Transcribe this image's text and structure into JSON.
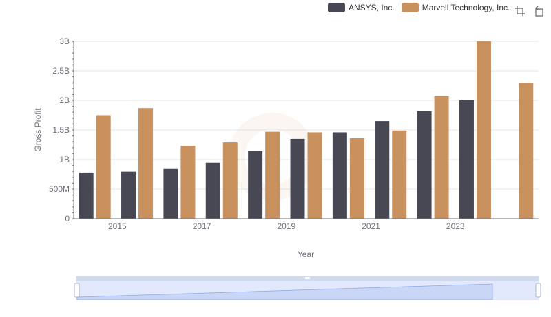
{
  "legend": [
    {
      "name": "ANSYS, Inc.",
      "color": "#484854"
    },
    {
      "name": "Marvell Technology, Inc.",
      "color": "#c9915e"
    }
  ],
  "toolbox": {
    "zoom_icon": "zoom-crosshair-icon",
    "restore_icon": "restore-icon"
  },
  "chart_data": {
    "type": "bar",
    "categories": [
      "2014",
      "2015",
      "2016",
      "2017",
      "2018",
      "2019",
      "2020",
      "2021",
      "2022",
      "2023",
      "2024"
    ],
    "xtick_labels": [
      "2015",
      "2017",
      "2019",
      "2021",
      "2023"
    ],
    "series": [
      {
        "name": "ANSYS, Inc.",
        "color": "#484854",
        "values": [
          780000000,
          795000000,
          840000000,
          945000000,
          1140000000,
          1350000000,
          1460000000,
          1650000000,
          1815000000,
          2000000000,
          null
        ]
      },
      {
        "name": "Marvell Technology, Inc.",
        "color": "#c9915e",
        "values": [
          1750000000,
          1870000000,
          1230000000,
          1290000000,
          1470000000,
          1460000000,
          1360000000,
          1490000000,
          2070000000,
          3000000000,
          2300000000
        ]
      }
    ],
    "ylim": [
      0,
      3000000000
    ],
    "yticks": [
      {
        "value": 0,
        "label": "0"
      },
      {
        "value": 500000000,
        "label": "500M"
      },
      {
        "value": 1000000000,
        "label": "1B"
      },
      {
        "value": 1500000000,
        "label": "1.5B"
      },
      {
        "value": 2000000000,
        "label": "2B"
      },
      {
        "value": 2500000000,
        "label": "2.5B"
      },
      {
        "value": 3000000000,
        "label": "3B"
      }
    ],
    "xlabel": "Year",
    "ylabel": "Gross Profit",
    "grid": true,
    "legend_position": "top-right"
  }
}
